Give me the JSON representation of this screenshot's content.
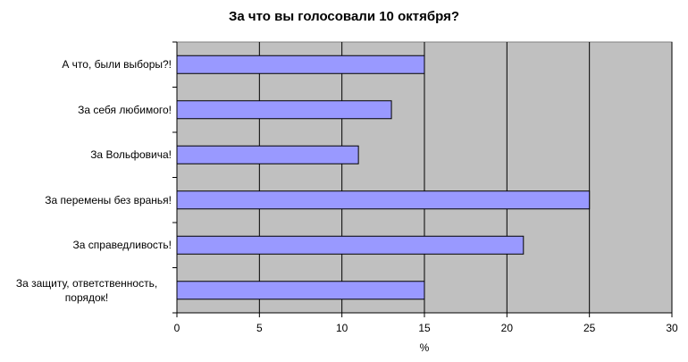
{
  "chart_data": {
    "type": "bar",
    "orientation": "horizontal",
    "title": "За что вы голосовали 10 октября?",
    "x_label": "%",
    "categories": [
      "А что, были выборы?!",
      "За себя любимого!",
      "За Вольфовича!",
      "За перемены без вранья!",
      "За справедливость!",
      "За защиту, ответственность, порядок!"
    ],
    "values": [
      15,
      13,
      11,
      25,
      21,
      15
    ],
    "color": "#9999ff",
    "xlim": [
      0,
      30
    ],
    "xticks": [
      0,
      5,
      10,
      15,
      20,
      25,
      30
    ],
    "grid": true
  }
}
